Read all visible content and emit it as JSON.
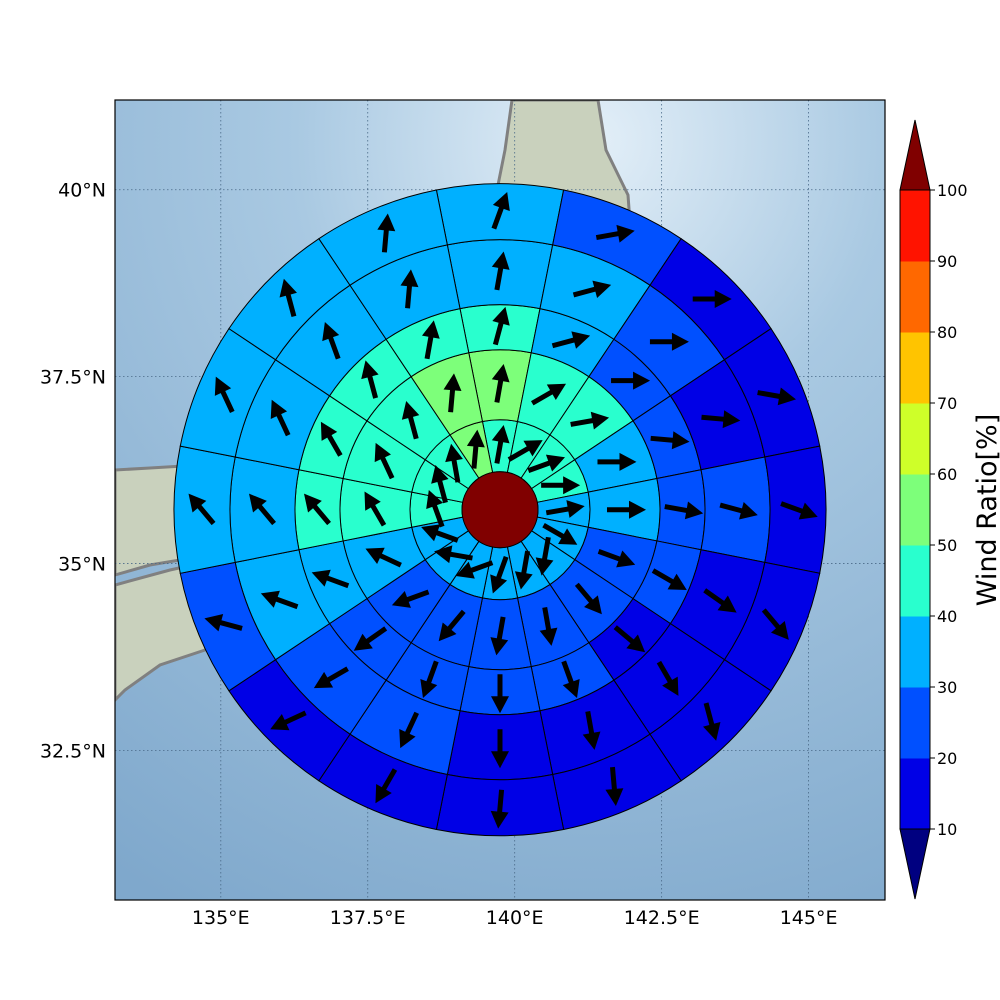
{
  "chart_data": {
    "type": "polar wind-ratio map",
    "x_axis": {
      "range": [
        133.2,
        146.3
      ],
      "tick_values": [
        135,
        137.5,
        140,
        142.5,
        145
      ],
      "tick_labels": [
        "135°E",
        "137.5°E",
        "140°E",
        "142.5°E",
        "145°E"
      ]
    },
    "y_axis": {
      "range": [
        30.5,
        41.2
      ],
      "tick_values": [
        32.5,
        35,
        37.5,
        40
      ],
      "tick_labels": [
        "32.5°N",
        "35°N",
        "37.5°N",
        "40°N"
      ]
    },
    "grid": true,
    "center": {
      "lon": 139.75,
      "lat": 35.72
    },
    "colorbar": {
      "label": "Wind Ratio[%]",
      "boundaries": [
        10,
        20,
        30,
        40,
        50,
        60,
        70,
        80,
        90,
        100
      ],
      "tick_labels": [
        "10",
        "20",
        "30",
        "40",
        "50",
        "60",
        "70",
        "80",
        "90",
        "100"
      ],
      "colors": [
        "#0000e6",
        "#0050ff",
        "#00b0ff",
        "#29ffce",
        "#7dff7a",
        "#ceff29",
        "#ffc400",
        "#ff6800",
        "#ff1300"
      ],
      "under_color": "#000080",
      "over_color": "#800000",
      "extend": "both"
    },
    "center_value_percent": 100,
    "sector_bearings_deg": [
      0,
      22.5,
      45,
      67.5,
      90,
      112.5,
      135,
      157.5,
      180,
      202.5,
      225,
      247.5,
      270,
      292.5,
      315,
      337.5
    ],
    "rings": [
      {
        "sectors": [
          {
            "value": 45
          },
          {
            "value": 45
          },
          {
            "value": 45
          },
          {
            "value": 45
          },
          {
            "value": 35
          },
          {
            "value": 35
          },
          {
            "value": 35
          },
          {
            "value": 35
          },
          {
            "value": 35
          },
          {
            "value": 35
          },
          {
            "value": 35
          },
          {
            "value": 35
          },
          {
            "value": 45
          },
          {
            "value": 45
          },
          {
            "value": 45
          },
          {
            "value": 55
          }
        ]
      },
      {
        "sectors": [
          {
            "value": 55
          },
          {
            "value": 45
          },
          {
            "value": 45
          },
          {
            "value": 35
          },
          {
            "value": 35
          },
          {
            "value": 25
          },
          {
            "value": 25
          },
          {
            "value": 25
          },
          {
            "value": 25
          },
          {
            "value": 25
          },
          {
            "value": 25
          },
          {
            "value": 35
          },
          {
            "value": 45
          },
          {
            "value": 45
          },
          {
            "value": 45
          },
          {
            "value": 55
          }
        ]
      },
      {
        "sectors": [
          {
            "value": 45
          },
          {
            "value": 35
          },
          {
            "value": 25
          },
          {
            "value": 25
          },
          {
            "value": 25
          },
          {
            "value": 25
          },
          {
            "value": 15
          },
          {
            "value": 25
          },
          {
            "value": 25
          },
          {
            "value": 25
          },
          {
            "value": 25
          },
          {
            "value": 35
          },
          {
            "value": 45
          },
          {
            "value": 45
          },
          {
            "value": 45
          },
          {
            "value": 45
          }
        ]
      },
      {
        "sectors": [
          {
            "value": 35
          },
          {
            "value": 35
          },
          {
            "value": 25
          },
          {
            "value": 15
          },
          {
            "value": 25
          },
          {
            "value": 15
          },
          {
            "value": 15
          },
          {
            "value": 15
          },
          {
            "value": 15
          },
          {
            "value": 25
          },
          {
            "value": 25
          },
          {
            "value": 35
          },
          {
            "value": 35
          },
          {
            "value": 35
          },
          {
            "value": 35
          },
          {
            "value": 35
          }
        ]
      },
      {
        "sectors": [
          {
            "value": 35
          },
          {
            "value": 25
          },
          {
            "value": 15
          },
          {
            "value": 15
          },
          {
            "value": 15
          },
          {
            "value": 15
          },
          {
            "value": 15
          },
          {
            "value": 15
          },
          {
            "value": 15
          },
          {
            "value": 15
          },
          {
            "value": 15
          },
          {
            "value": 25
          },
          {
            "value": 35
          },
          {
            "value": 35
          },
          {
            "value": 35
          },
          {
            "value": 35
          }
        ]
      }
    ],
    "arrow_dirs_deg": [
      [
        10,
        60,
        70,
        90,
        80,
        120,
        190,
        190,
        200,
        250,
        280,
        290,
        340,
        345,
        350,
        5
      ],
      [
        10,
        60,
        80,
        90,
        90,
        110,
        140,
        170,
        190,
        220,
        250,
        295,
        330,
        335,
        345,
        5
      ],
      [
        15,
        75,
        90,
        95,
        100,
        120,
        130,
        160,
        180,
        200,
        235,
        290,
        320,
        330,
        345,
        10
      ],
      [
        10,
        75,
        90,
        95,
        105,
        125,
        150,
        170,
        180,
        205,
        240,
        290,
        320,
        335,
        340,
        5
      ],
      [
        20,
        80,
        90,
        100,
        110,
        140,
        165,
        175,
        185,
        210,
        245,
        285,
        320,
        335,
        345,
        5
      ]
    ]
  }
}
